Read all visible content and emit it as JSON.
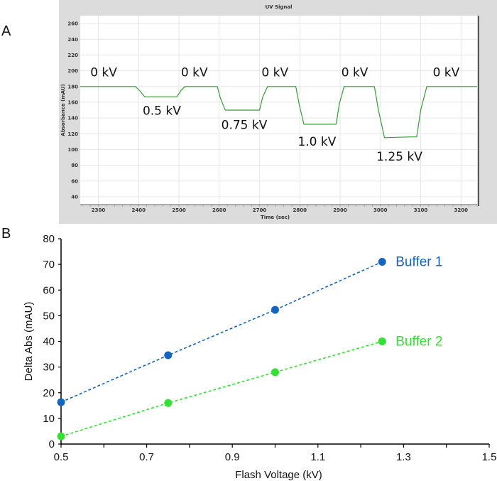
{
  "panels": {
    "a": "A",
    "b": "B"
  },
  "chart_data": [
    {
      "type": "line",
      "title": "UV Signal",
      "xlabel": "Time (sec)",
      "ylabel": "Absorbance (mAU)",
      "xlim": [
        2255,
        3240
      ],
      "ylim": [
        30,
        270
      ],
      "xticks": [
        2300,
        2400,
        2500,
        2600,
        2700,
        2800,
        2900,
        3000,
        3100,
        3200
      ],
      "yticks": [
        40,
        60,
        80,
        100,
        120,
        140,
        160,
        180,
        200,
        220,
        240,
        260
      ],
      "grid": true,
      "colors": {
        "line": "#3a9a3a",
        "frame": "#dcdcdc"
      },
      "series": [
        {
          "name": "UV",
          "x": [
            2255,
            2392,
            2402,
            2415,
            2495,
            2505,
            2515,
            2595,
            2603,
            2615,
            2700,
            2708,
            2720,
            2790,
            2798,
            2810,
            2890,
            2898,
            2910,
            2985,
            2995,
            3010,
            3075,
            3090,
            3100,
            3115,
            3240
          ],
          "y": [
            180,
            180,
            175,
            167,
            167,
            175,
            180,
            180,
            165,
            150,
            150,
            167,
            180,
            180,
            158,
            132,
            132,
            158,
            180,
            180,
            150,
            115,
            116,
            116,
            150,
            180,
            180
          ]
        }
      ],
      "annotations": [
        {
          "text": "0 kV",
          "x": 2280,
          "y": 193
        },
        {
          "text": "0.5 kV",
          "x": 2410,
          "y": 144
        },
        {
          "text": "0 kV",
          "x": 2505,
          "y": 193
        },
        {
          "text": "0.75 kV",
          "x": 2605,
          "y": 126
        },
        {
          "text": "0 kV",
          "x": 2705,
          "y": 193
        },
        {
          "text": "1.0 kV",
          "x": 2795,
          "y": 105
        },
        {
          "text": "0 kV",
          "x": 2903,
          "y": 193
        },
        {
          "text": "1.25 kV",
          "x": 2990,
          "y": 86
        },
        {
          "text": "0 kV",
          "x": 3130,
          "y": 193
        }
      ]
    },
    {
      "type": "scatter",
      "xlabel": "Flash Voltage (kV)",
      "ylabel": "Delta Abs (mAU)",
      "xlim": [
        0.5,
        1.5
      ],
      "ylim": [
        0,
        80
      ],
      "xticks": [
        "0.5",
        "0.7",
        "0.9",
        "1.1",
        "1.3",
        "1.5"
      ],
      "yticks": [
        "0",
        "10",
        "20",
        "30",
        "40",
        "50",
        "60",
        "70",
        "80"
      ],
      "grid": false,
      "series": [
        {
          "name": "Buffer 1",
          "color": "#1565c0",
          "x": [
            0.5,
            0.75,
            1.0,
            1.25
          ],
          "y": [
            16.3,
            34.6,
            52.3,
            71
          ]
        },
        {
          "name": "Buffer 2",
          "color": "#33e033",
          "x": [
            0.5,
            0.75,
            1.0,
            1.25
          ],
          "y": [
            3,
            16,
            28,
            40
          ]
        }
      ]
    }
  ]
}
